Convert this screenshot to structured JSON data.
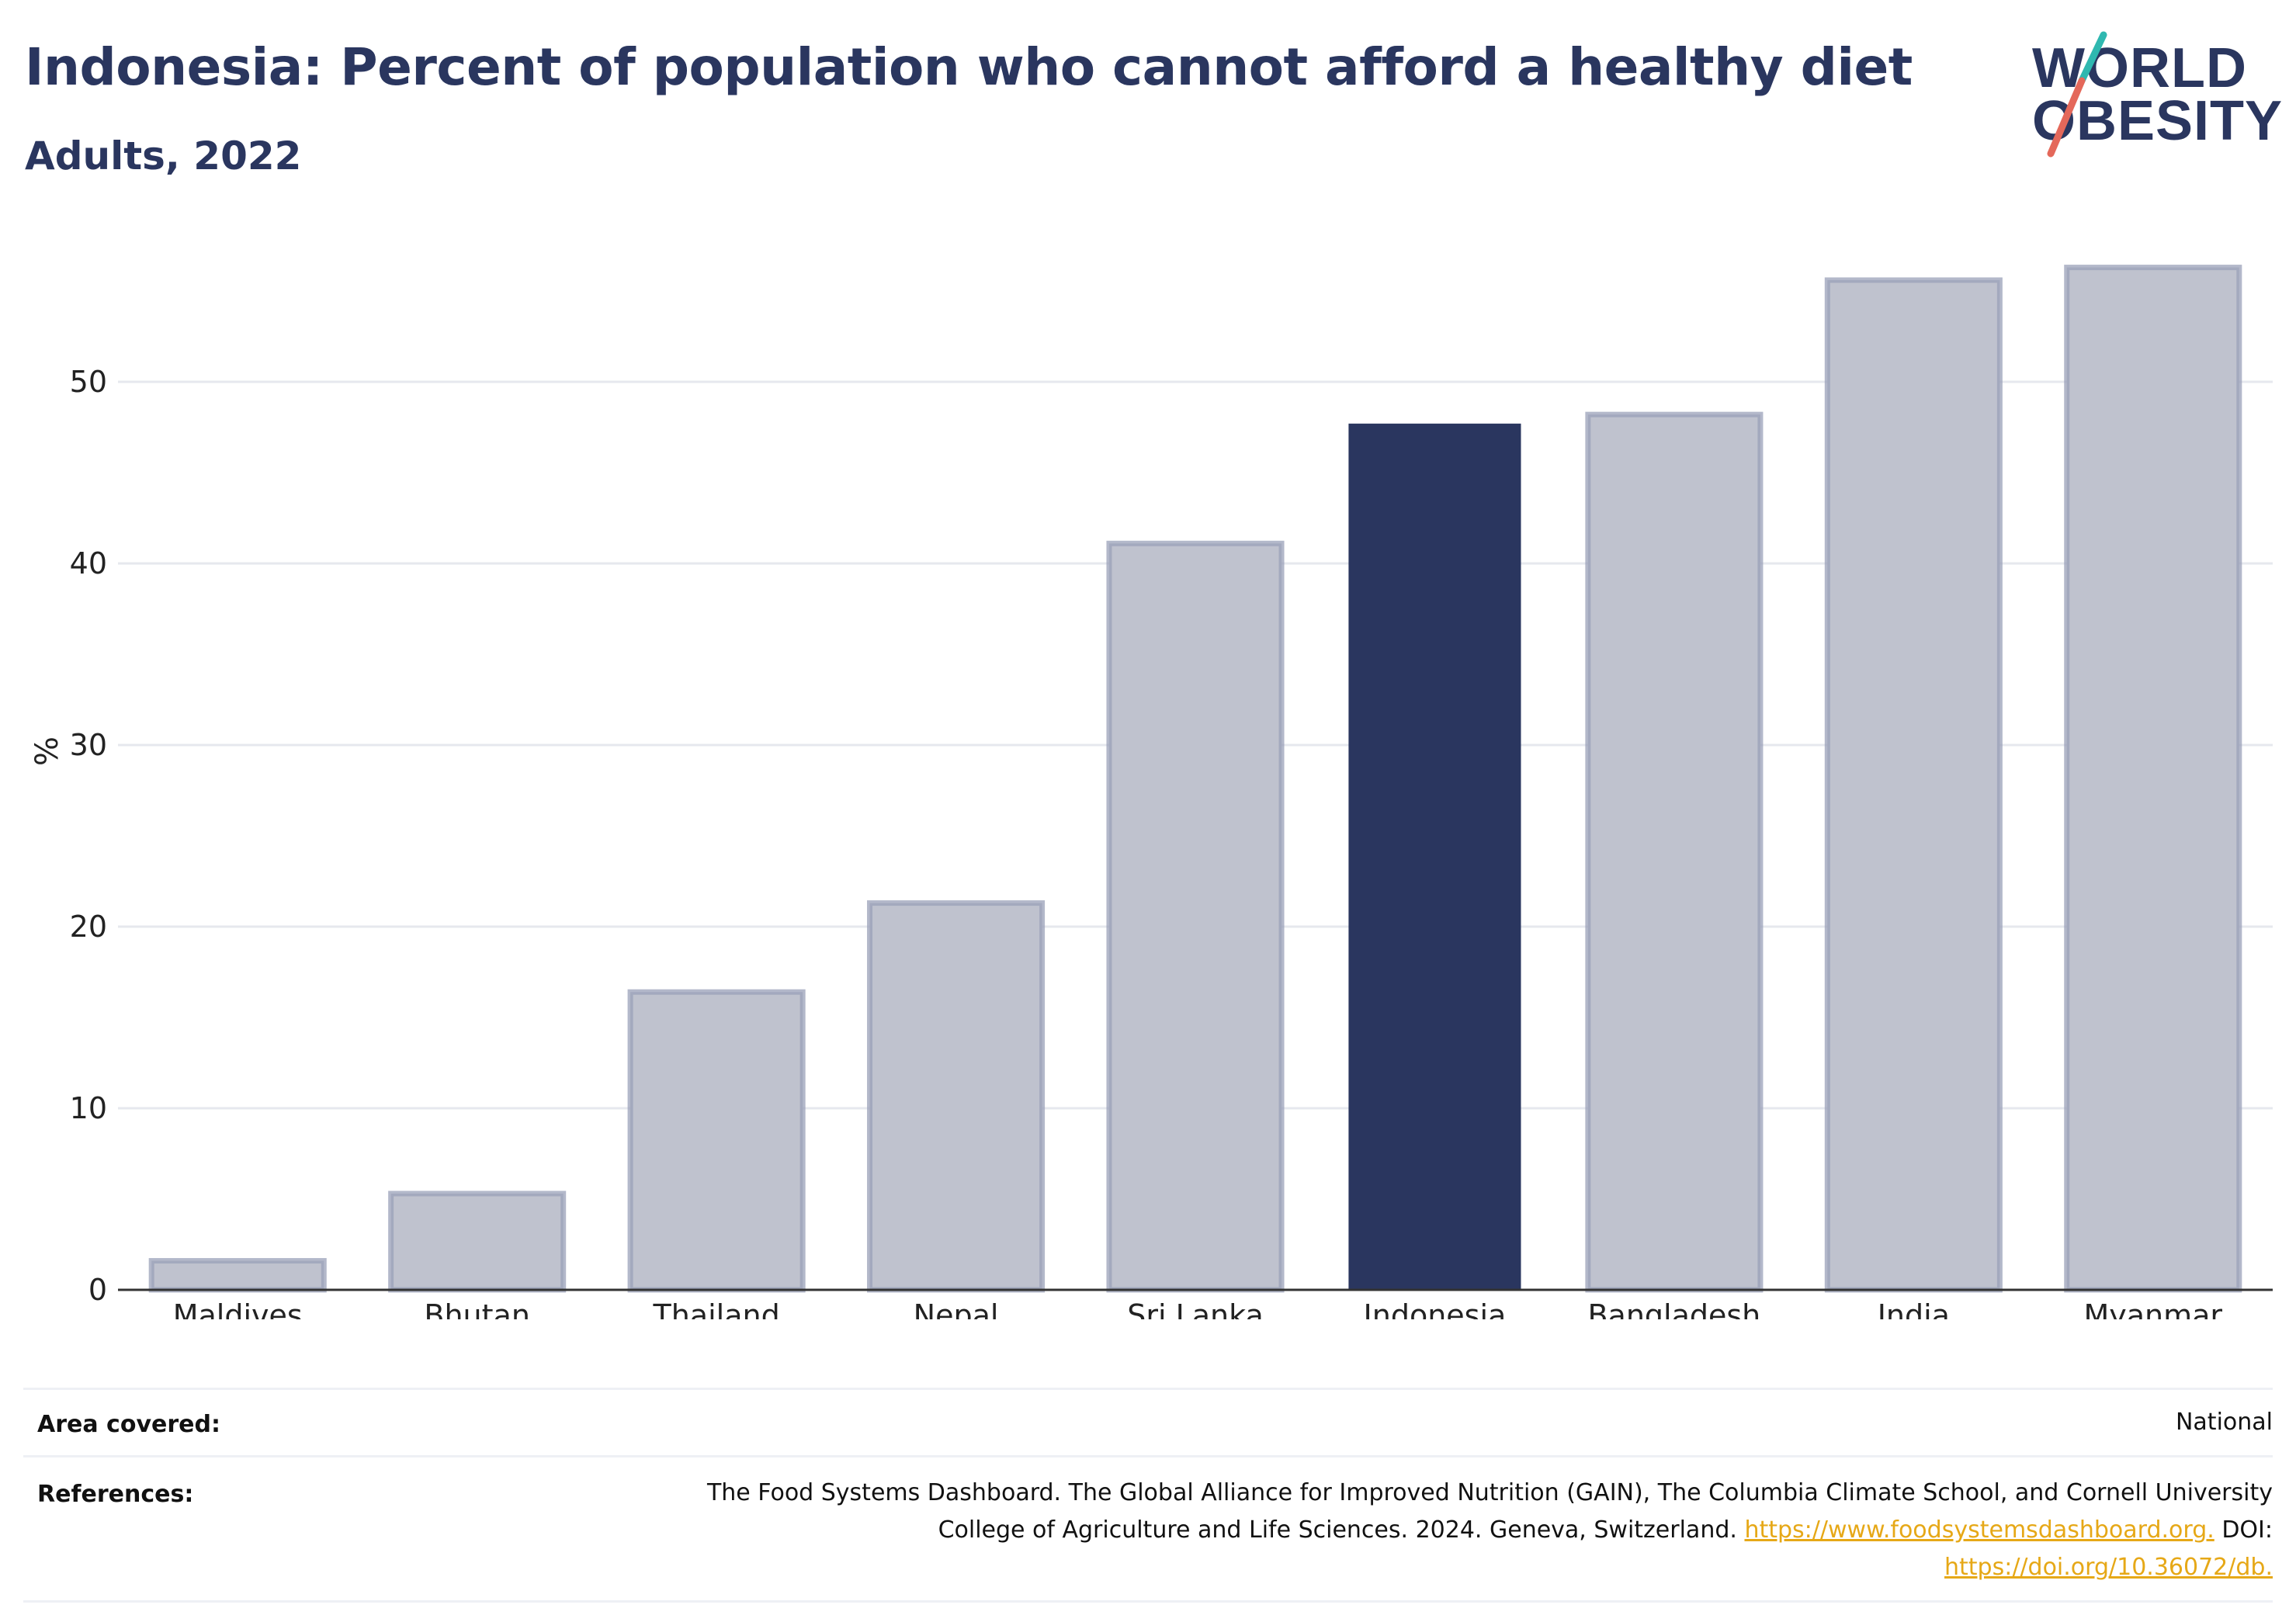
{
  "header": {
    "title": "Indonesia: Percent of population who cannot afford a healthy diet",
    "subtitle": "Adults, 2022"
  },
  "logo": {
    "line1": "WORLD",
    "line2": "OBESITY",
    "name": "world-obesity-logo"
  },
  "chart_data": {
    "type": "bar",
    "categories": [
      "Maldives",
      "Bhutan",
      "Thailand",
      "Nepal",
      "Sri Lanka",
      "Indonesia",
      "Bangladesh",
      "India",
      "Myanmar"
    ],
    "values": [
      1.6,
      5.3,
      16.4,
      21.3,
      41.1,
      47.7,
      48.2,
      55.6,
      56.3
    ],
    "highlight": "Indonesia",
    "ylabel": "%",
    "xlabel": "",
    "ylim": [
      0,
      57
    ],
    "yticks": [
      0,
      10,
      20,
      30,
      40,
      50
    ],
    "grid": true,
    "colors": {
      "highlight": "#2a365f",
      "other_fill": "#bfc2ce",
      "other_stroke": "#9aa0b8"
    }
  },
  "footer": {
    "area_label": "Area covered:",
    "area_value": "National",
    "refs_label": "References:",
    "refs_line1": "The Food Systems Dashboard. The Global Alliance for Improved Nutrition (GAIN), The Columbia Climate School, and Cornell University",
    "refs_line2_text": "College of Agriculture and Life Sciences. 2024. Geneva, Switzerland.",
    "refs_link1": "https://www.foodsystemsdashboard.org.",
    "refs_doi_label": "DOI:",
    "refs_link2": "https://doi.org/10.36072/db."
  }
}
